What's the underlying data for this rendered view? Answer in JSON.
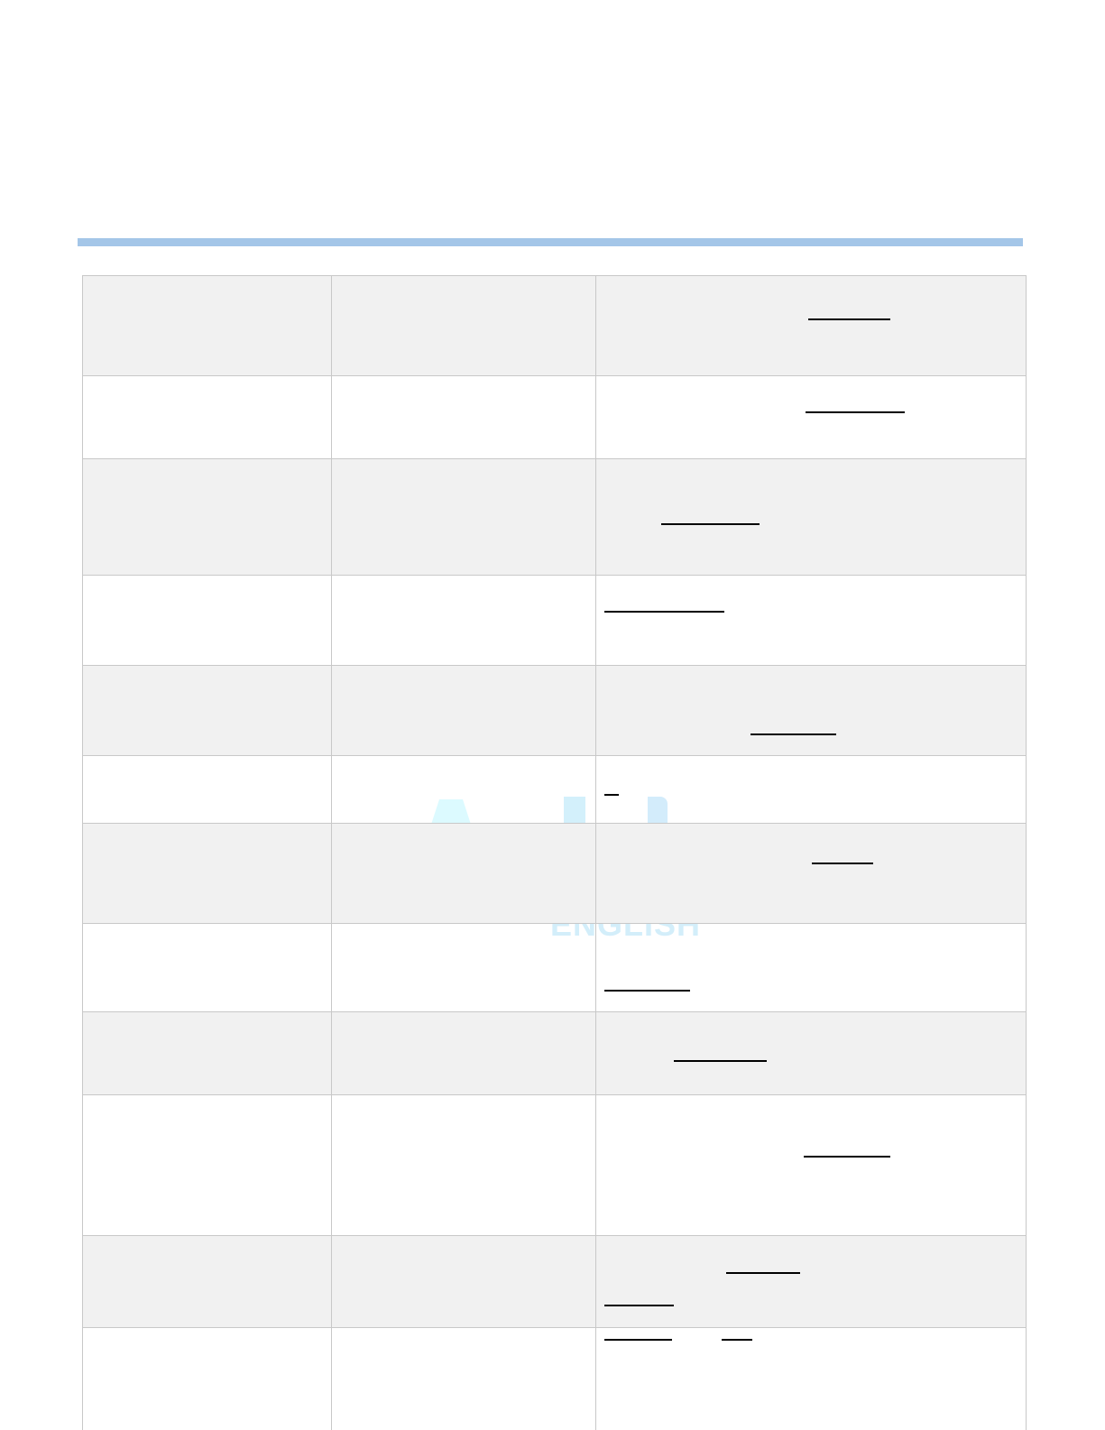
{
  "document": {
    "header_rule_color": "#a4c6e8",
    "row_alt_color": "#f1f1f1",
    "border_color": "#c8c8c8"
  },
  "watermark": {
    "text": "ENGLISH",
    "color": "#d3eefa"
  },
  "table": {
    "columns": 3,
    "rows": 12,
    "links_per_row": [
      1,
      1,
      1,
      1,
      1,
      1,
      1,
      1,
      1,
      1,
      2,
      2
    ]
  }
}
